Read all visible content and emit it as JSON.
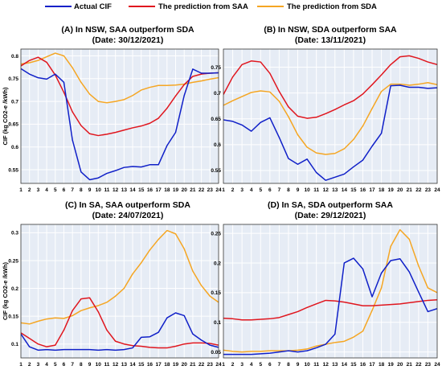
{
  "legend": [
    {
      "name": "Actual CIF",
      "color": "#1020c8"
    },
    {
      "name": "The prediction from SAA",
      "color": "#e0161e"
    },
    {
      "name": "The prediction from SDA",
      "color": "#f5a623"
    }
  ],
  "chart_data": [
    {
      "type": "line",
      "title": "(A) In NSW, SAA outperform SDA",
      "subtitle": "(Date: 30/12/2021)",
      "ylabel": "CIF (kg CO2-e /kWh)",
      "x": [
        1,
        2,
        3,
        4,
        5,
        6,
        7,
        8,
        9,
        10,
        11,
        12,
        13,
        14,
        15,
        16,
        17,
        18,
        19,
        20,
        21,
        22,
        23,
        24
      ],
      "xlim": [
        1,
        24
      ],
      "ylim": [
        0.52,
        0.815
      ],
      "yticks": [
        0.55,
        0.6,
        0.65,
        0.7,
        0.75,
        0.8
      ],
      "ytick_labels": [
        "0.55",
        "0.6",
        "0.65",
        "0.7",
        "0.75",
        "0.8"
      ],
      "series": [
        {
          "name": "Actual CIF",
          "values": [
            0.772,
            0.76,
            0.752,
            0.749,
            0.76,
            0.742,
            0.615,
            0.545,
            0.528,
            0.532,
            0.542,
            0.548,
            0.555,
            0.557,
            0.556,
            0.561,
            0.561,
            0.603,
            0.632,
            0.713,
            0.771,
            0.762,
            0.762,
            0.763
          ]
        },
        {
          "name": "The prediction from SAA",
          "values": [
            0.778,
            0.79,
            0.797,
            0.786,
            0.758,
            0.72,
            0.677,
            0.647,
            0.629,
            0.625,
            0.628,
            0.632,
            0.637,
            0.642,
            0.646,
            0.652,
            0.663,
            0.685,
            0.712,
            0.737,
            0.755,
            0.76,
            0.762,
            0.763
          ]
        },
        {
          "name": "The prediction from SDA",
          "values": [
            0.782,
            0.785,
            0.79,
            0.798,
            0.806,
            0.8,
            0.774,
            0.742,
            0.716,
            0.7,
            0.697,
            0.7,
            0.704,
            0.713,
            0.725,
            0.731,
            0.735,
            0.735,
            0.736,
            0.738,
            0.742,
            0.745,
            0.749,
            0.752
          ]
        }
      ]
    },
    {
      "type": "line",
      "title": "(B) In NSW, SDA outperform SAA",
      "subtitle": "(Date: 13/11/2021)",
      "ylabel": "",
      "x": [
        1,
        2,
        3,
        4,
        5,
        6,
        7,
        8,
        9,
        10,
        11,
        12,
        13,
        14,
        15,
        16,
        17,
        18,
        19,
        20,
        21,
        22,
        23,
        24
      ],
      "xlim": [
        1,
        24
      ],
      "ylim": [
        0.525,
        0.785
      ],
      "yticks": [
        0.55,
        0.6,
        0.65,
        0.7,
        0.75
      ],
      "ytick_labels": [
        "0.55",
        "0.6",
        "0.65",
        "0.7",
        "0.75"
      ],
      "series": [
        {
          "name": "Actual CIF",
          "values": [
            0.648,
            0.645,
            0.638,
            0.626,
            0.643,
            0.652,
            0.614,
            0.573,
            0.562,
            0.572,
            0.546,
            0.531,
            0.537,
            0.543,
            0.557,
            0.57,
            0.597,
            0.622,
            0.714,
            0.715,
            0.711,
            0.711,
            0.709,
            0.71
          ]
        },
        {
          "name": "The prediction from SAA",
          "values": [
            0.697,
            0.731,
            0.755,
            0.762,
            0.76,
            0.738,
            0.703,
            0.673,
            0.655,
            0.651,
            0.653,
            0.66,
            0.668,
            0.677,
            0.685,
            0.698,
            0.716,
            0.735,
            0.755,
            0.77,
            0.772,
            0.767,
            0.76,
            0.755
          ]
        },
        {
          "name": "The prediction from SDA",
          "values": [
            0.676,
            0.685,
            0.693,
            0.701,
            0.704,
            0.702,
            0.684,
            0.654,
            0.619,
            0.595,
            0.584,
            0.581,
            0.583,
            0.592,
            0.61,
            0.636,
            0.67,
            0.703,
            0.717,
            0.717,
            0.715,
            0.717,
            0.72,
            0.716
          ]
        }
      ]
    },
    {
      "type": "line",
      "title": "(C) In SA, SAA outperform SDA",
      "subtitle": "(Date: 24/07/2021)",
      "ylabel": "CIF (kg CO2-e /kWh)",
      "x": [
        1,
        2,
        3,
        4,
        5,
        6,
        7,
        8,
        9,
        10,
        11,
        12,
        13,
        14,
        15,
        16,
        17,
        18,
        19,
        20,
        21,
        22,
        23,
        24
      ],
      "xlim": [
        1,
        24
      ],
      "ylim": [
        0.075,
        0.315
      ],
      "yticks": [
        0.1,
        0.15,
        0.2,
        0.25,
        0.3
      ],
      "ytick_labels": [
        "0.1",
        "0.15",
        "0.2",
        "0.25",
        "0.3"
      ],
      "series": [
        {
          "name": "Actual CIF",
          "values": [
            0.118,
            0.095,
            0.089,
            0.09,
            0.089,
            0.09,
            0.09,
            0.09,
            0.09,
            0.089,
            0.09,
            0.089,
            0.09,
            0.093,
            0.112,
            0.113,
            0.121,
            0.147,
            0.156,
            0.151,
            0.118,
            0.107,
            0.098,
            0.094
          ]
        },
        {
          "name": "The prediction from SAA",
          "values": [
            0.12,
            0.11,
            0.1,
            0.095,
            0.098,
            0.125,
            0.16,
            0.181,
            0.183,
            0.158,
            0.125,
            0.105,
            0.1,
            0.097,
            0.096,
            0.094,
            0.093,
            0.093,
            0.096,
            0.1,
            0.102,
            0.102,
            0.101,
            0.098
          ]
        },
        {
          "name": "The prediction from SDA",
          "values": [
            0.138,
            0.136,
            0.141,
            0.145,
            0.147,
            0.146,
            0.151,
            0.16,
            0.165,
            0.169,
            0.175,
            0.186,
            0.2,
            0.226,
            0.246,
            0.269,
            0.288,
            0.304,
            0.298,
            0.271,
            0.231,
            0.205,
            0.186,
            0.175
          ]
        }
      ]
    },
    {
      "type": "line",
      "title": "(D) In SA, SDA outperform SAA",
      "subtitle": "(Date: 29/12/2021)",
      "ylabel": "",
      "x": [
        1,
        2,
        3,
        4,
        5,
        6,
        7,
        8,
        9,
        10,
        11,
        12,
        13,
        14,
        15,
        16,
        17,
        18,
        19,
        20,
        21,
        22,
        23,
        24
      ],
      "xlim": [
        1,
        24
      ],
      "ylim": [
        0.04,
        0.265
      ],
      "yticks": [
        0.05,
        0.1,
        0.15,
        0.2,
        0.25
      ],
      "ytick_labels": [
        "0.05",
        "0.1",
        "0.15",
        "0.2",
        "0.25"
      ],
      "series": [
        {
          "name": "Actual CIF",
          "values": [
            0.046,
            0.046,
            0.046,
            0.046,
            0.047,
            0.048,
            0.05,
            0.052,
            0.05,
            0.052,
            0.057,
            0.063,
            0.08,
            0.2,
            0.208,
            0.19,
            0.143,
            0.183,
            0.204,
            0.207,
            0.185,
            0.151,
            0.118,
            0.123
          ]
        },
        {
          "name": "The prediction from SAA",
          "values": [
            0.107,
            0.106,
            0.104,
            0.104,
            0.105,
            0.106,
            0.108,
            0.113,
            0.118,
            0.125,
            0.131,
            0.137,
            0.136,
            0.134,
            0.131,
            0.128,
            0.128,
            0.129,
            0.13,
            0.131,
            0.133,
            0.135,
            0.137,
            0.138
          ]
        },
        {
          "name": "The prediction from SDA",
          "values": [
            0.053,
            0.051,
            0.05,
            0.051,
            0.051,
            0.052,
            0.052,
            0.052,
            0.053,
            0.055,
            0.06,
            0.063,
            0.066,
            0.068,
            0.075,
            0.085,
            0.12,
            0.158,
            0.228,
            0.256,
            0.24,
            0.195,
            0.158,
            0.15
          ]
        }
      ]
    }
  ]
}
